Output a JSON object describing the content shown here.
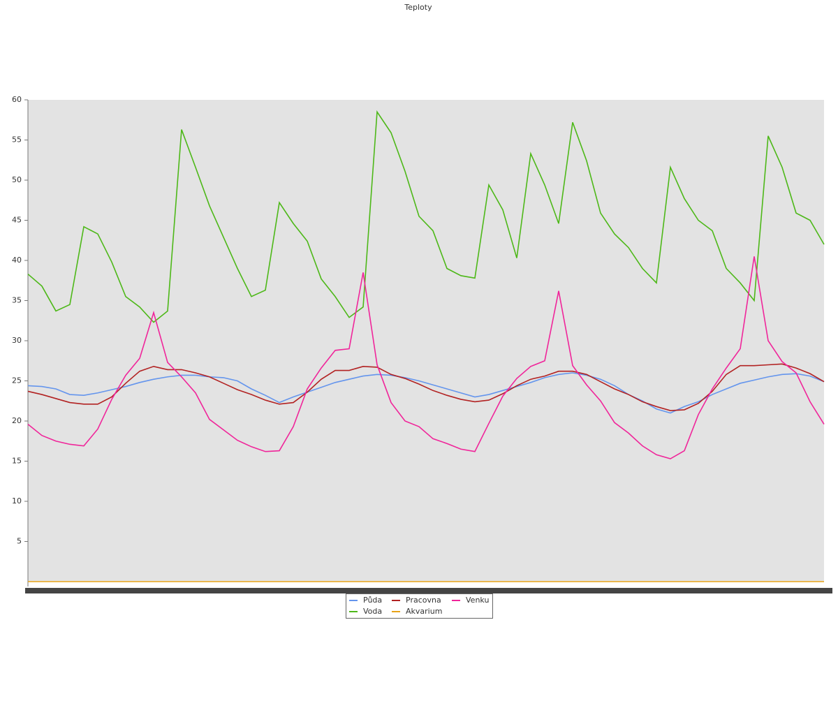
{
  "chart_data": {
    "type": "line",
    "title": "Teploty",
    "categories": [
      null,
      null,
      null,
      null,
      null,
      null,
      null,
      null,
      null,
      null,
      null,
      null,
      null,
      null,
      null,
      null,
      null,
      null,
      null,
      null,
      null,
      null,
      null,
      null,
      null,
      null,
      null,
      null,
      null,
      null,
      null,
      null,
      null,
      null,
      null,
      null,
      null,
      null,
      null,
      null,
      null,
      null,
      null,
      null,
      null,
      null,
      null,
      null,
      null,
      null,
      null,
      null,
      null,
      null,
      null,
      null,
      null,
      null
    ],
    "ylim": [
      0,
      60
    ],
    "yticks": [
      5,
      10,
      15,
      20,
      25,
      30,
      35,
      40,
      45,
      50,
      55,
      60
    ],
    "legend": "bottom",
    "series": [
      {
        "name": "Půda",
        "color": "#6495ed",
        "values": [
          24.4,
          24.3,
          24,
          23.3,
          23.2,
          23.5,
          23.9,
          24.3,
          24.8,
          25.2,
          25.5,
          25.7,
          25.7,
          25.5,
          25.4,
          25,
          24,
          23.2,
          22.3,
          23,
          23.6,
          24.2,
          24.8,
          25.2,
          25.6,
          25.8,
          25.7,
          25.4,
          25,
          24.5,
          24,
          23.5,
          23,
          23.3,
          23.8,
          24.3,
          24.8,
          25.4,
          25.8,
          26,
          25.7,
          25.2,
          24.4,
          23.3,
          22.5,
          21.5,
          21,
          21.8,
          22.4,
          23.3,
          24,
          24.7,
          25.1,
          25.5,
          25.8,
          25.9,
          25.6,
          24.9
        ]
      },
      {
        "name": "Voda",
        "color": "#4db818",
        "values": [
          38.3,
          36.8,
          33.7,
          34.5,
          44.2,
          43.3,
          39.8,
          35.5,
          34.2,
          32.3,
          33.7,
          56.3,
          51.6,
          46.8,
          42.9,
          39,
          35.5,
          36.3,
          47.2,
          44.6,
          42.4,
          37.7,
          35.5,
          32.9,
          34.2,
          58.5,
          55.9,
          51.1,
          45.5,
          43.7,
          39,
          38.1,
          37.8,
          49.4,
          46.3,
          40.3,
          53.3,
          49.4,
          44.6,
          57.2,
          52.4,
          45.9,
          43.3,
          41.6,
          39,
          37.2,
          51.6,
          47.7,
          45,
          43.7,
          39,
          37.2,
          35,
          55.5,
          51.6,
          45.9,
          45,
          42
        ]
      },
      {
        "name": "Pracovna",
        "color": "#b22222",
        "values": [
          23.7,
          23.3,
          22.8,
          22.3,
          22.1,
          22.1,
          23,
          24.7,
          26.2,
          26.8,
          26.4,
          26.4,
          26,
          25.5,
          24.7,
          23.9,
          23.3,
          22.6,
          22.1,
          22.3,
          23.6,
          25.2,
          26.3,
          26.3,
          26.8,
          26.7,
          25.8,
          25.3,
          24.6,
          23.8,
          23.2,
          22.7,
          22.4,
          22.6,
          23.4,
          24.4,
          25.2,
          25.6,
          26.2,
          26.2,
          25.8,
          24.9,
          24,
          23.3,
          22.4,
          21.8,
          21.3,
          21.4,
          22.2,
          23.7,
          25.8,
          26.9,
          26.9,
          27,
          27.1,
          26.6,
          25.9,
          24.9
        ]
      },
      {
        "name": "Akvarium",
        "color": "#e8a317",
        "values": [
          0,
          0,
          0,
          0,
          0,
          0,
          0,
          0,
          0,
          0,
          0,
          0,
          0,
          0,
          0,
          0,
          0,
          0,
          0,
          0,
          0,
          0,
          0,
          0,
          0,
          0,
          0,
          0,
          0,
          0,
          0,
          0,
          0,
          0,
          0,
          0,
          0,
          0,
          0,
          0,
          0,
          0,
          0,
          0,
          0,
          0,
          0,
          0,
          0,
          0,
          0,
          0,
          0,
          0,
          0,
          0,
          0,
          0
        ]
      },
      {
        "name": "Venku",
        "color": "#f0259a",
        "values": [
          19.6,
          18.2,
          17.5,
          17.1,
          16.9,
          19,
          22.7,
          25.7,
          27.8,
          33.5,
          27.3,
          25.5,
          23.5,
          20.2,
          18.9,
          17.6,
          16.8,
          16.2,
          16.3,
          19.3,
          24,
          26.6,
          28.8,
          29,
          38.5,
          27,
          22.3,
          20,
          19.3,
          17.8,
          17.2,
          16.5,
          16.2,
          19.7,
          23.1,
          25.3,
          26.8,
          27.5,
          36.2,
          26.9,
          24.5,
          22.5,
          19.8,
          18.5,
          16.9,
          15.8,
          15.3,
          16.3,
          20.8,
          24,
          26.6,
          29,
          40.5,
          30,
          27.4,
          26,
          22.4,
          19.6
        ]
      }
    ]
  }
}
